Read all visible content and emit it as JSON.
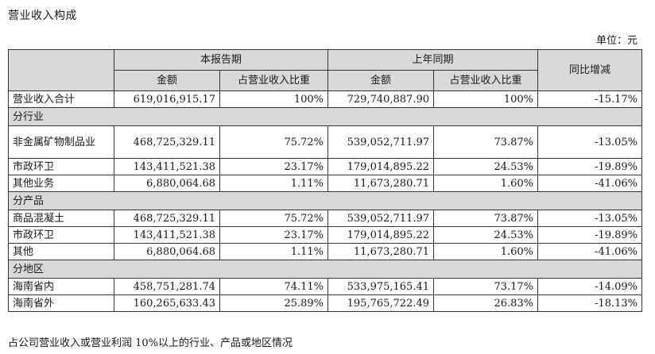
{
  "title": "营业收入构成",
  "unit": "单位：元",
  "header": {
    "current_period": "本报告期",
    "prior_period": "上年同期",
    "yoy": "同比增减",
    "amount": "金额",
    "share": "占营业收入比重"
  },
  "total_row": {
    "label": "营业收入合计",
    "cur_amount": "619,016,915.17",
    "cur_share": "100%",
    "prior_amount": "729,740,887.90",
    "prior_share": "100%",
    "yoy": "-15.17%"
  },
  "sections": [
    {
      "label": "分行业",
      "rows": [
        {
          "label": "非金属矿物制品业",
          "cur_amount": "468,725,329.11",
          "cur_share": "75.72%",
          "prior_amount": "539,052,711.97",
          "prior_share": "73.87%",
          "yoy": "-13.05%"
        },
        {
          "label": "市政环卫",
          "cur_amount": "143,411,521.38",
          "cur_share": "23.17%",
          "prior_amount": "179,014,895.22",
          "prior_share": "24.53%",
          "yoy": "-19.89%"
        },
        {
          "label": "其他业务",
          "cur_amount": "6,880,064.68",
          "cur_share": "1.11%",
          "prior_amount": "11,673,280.71",
          "prior_share": "1.60%",
          "yoy": "-41.06%"
        }
      ]
    },
    {
      "label": "分产品",
      "rows": [
        {
          "label": "商品混凝土",
          "cur_amount": "468,725,329.11",
          "cur_share": "75.72%",
          "prior_amount": "539,052,711.97",
          "prior_share": "73.87%",
          "yoy": "-13.05%"
        },
        {
          "label": "市政环卫",
          "cur_amount": "143,411,521.38",
          "cur_share": "23.17%",
          "prior_amount": "179,014,895.22",
          "prior_share": "24.53%",
          "yoy": "-19.89%"
        },
        {
          "label": "其他",
          "cur_amount": "6,880,064.68",
          "cur_share": "1.11%",
          "prior_amount": "11,673,280.71",
          "prior_share": "1.60%",
          "yoy": "-41.06%"
        }
      ]
    },
    {
      "label": "分地区",
      "rows": [
        {
          "label": "海南省内",
          "cur_amount": "458,751,281.74",
          "cur_share": "74.11%",
          "prior_amount": "533,975,165.41",
          "prior_share": "73.17%",
          "yoy": "-14.09%"
        },
        {
          "label": "海南省外",
          "cur_amount": "160,265,633.43",
          "cur_share": "25.89%",
          "prior_amount": "195,765,722.49",
          "prior_share": "26.83%",
          "yoy": "-18.13%"
        }
      ]
    }
  ],
  "footnote": "占公司营业收入或营业利润 10%以上的行业、产品或地区情况",
  "colors": {
    "header_fill": "#d9d9d9",
    "border": "#333333"
  }
}
